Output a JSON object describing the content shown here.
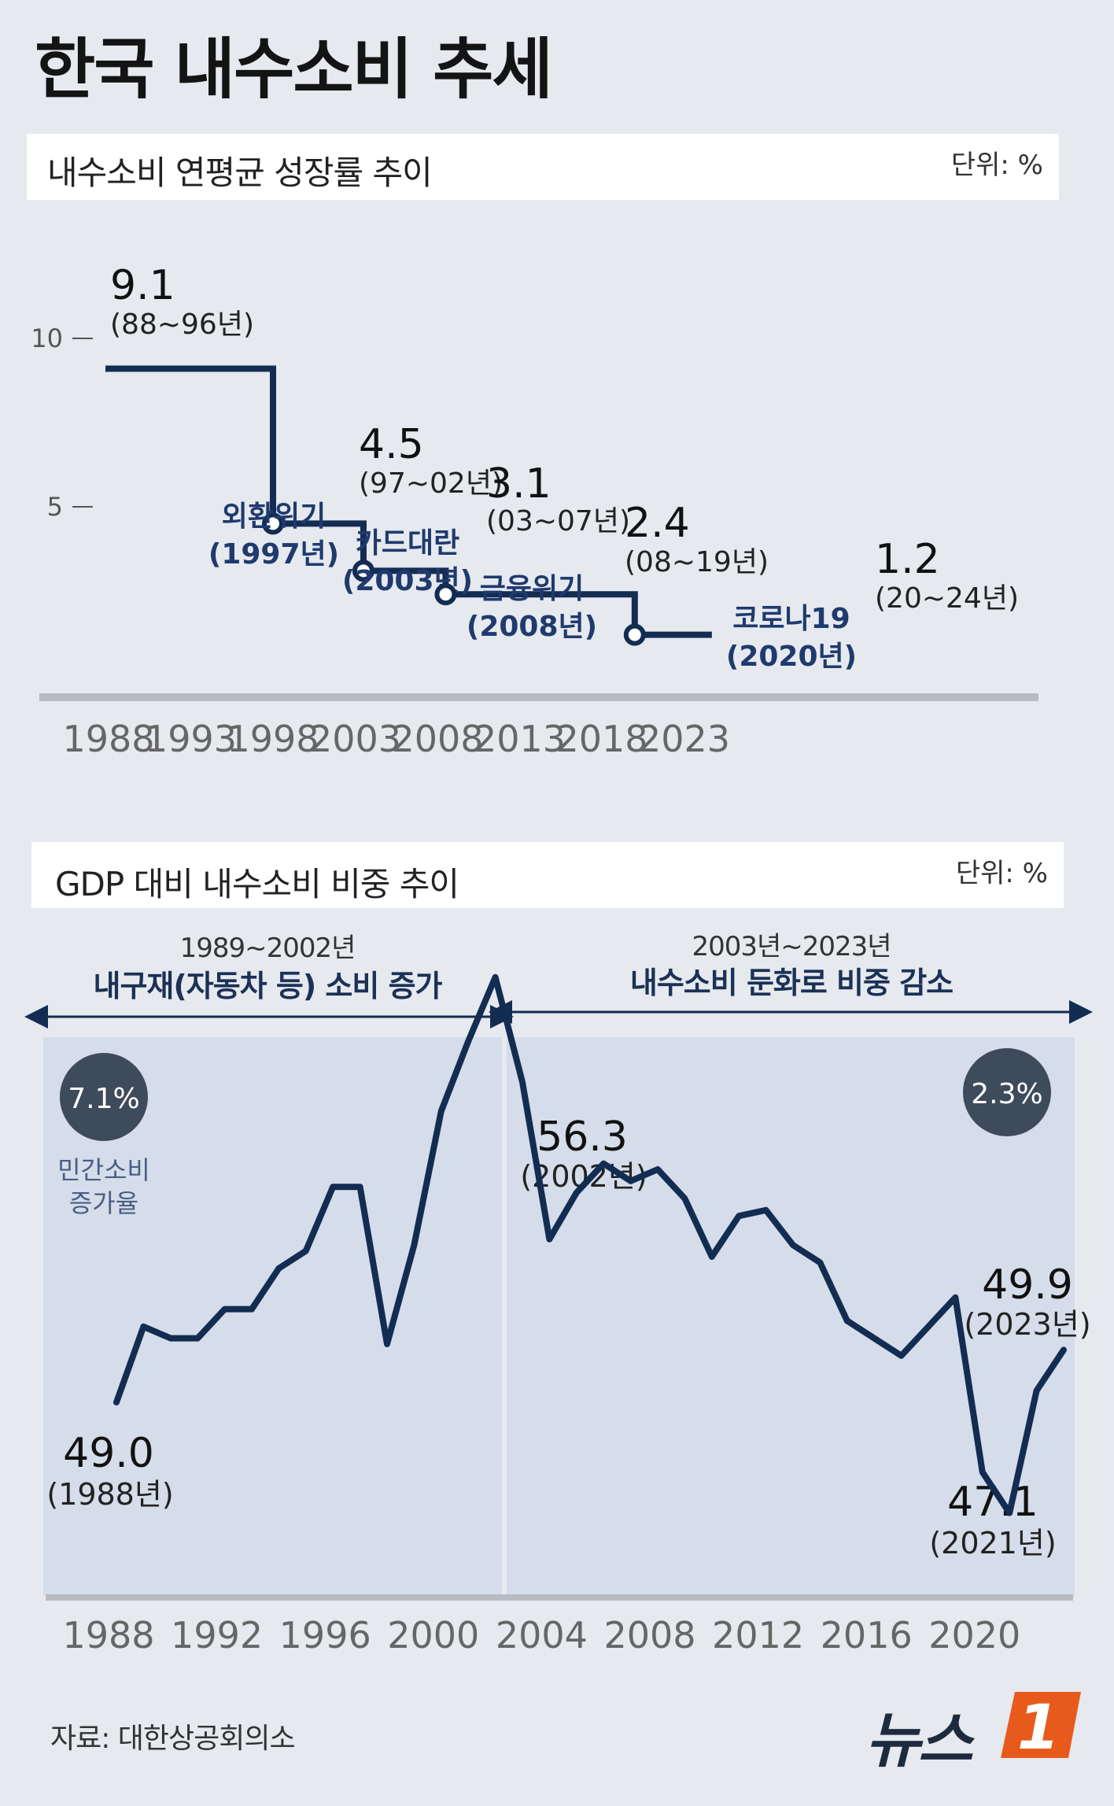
{
  "title": "한국 내수소비 추세",
  "source": "자료: 대한상공회의소",
  "logo": {
    "text": "뉴스",
    "mark": "1",
    "accent": "#e85a1c"
  },
  "colors": {
    "line": "#132c52",
    "bubble": "#3e4b5b",
    "panel": "#d4dde9"
  },
  "chart_data": [
    {
      "type": "line",
      "title": "내수소비 연평균 성장률 추이",
      "unit": "단위: %",
      "step": true,
      "x_ticks": [
        "1988",
        "1993",
        "1998",
        "2003",
        "2008",
        "2013",
        "2018",
        "2023"
      ],
      "y_ticks": [
        {
          "value": 10,
          "label": "10"
        },
        {
          "value": 5,
          "label": "5"
        }
      ],
      "segments": [
        {
          "start": 1988,
          "end": 1998,
          "value": 9.1,
          "label": "9.1",
          "period": "(88~96년)"
        },
        {
          "start": 1998,
          "end": 2003.5,
          "value": 4.5,
          "label": "4.5",
          "period": "(97~02년)"
        },
        {
          "start": 2003.5,
          "end": 2008.5,
          "value": 3.1,
          "label": "3.1",
          "period": "(03~07년)"
        },
        {
          "start": 2008.5,
          "end": 2020,
          "value": 2.4,
          "label": "2.4",
          "period": "(08~19년)"
        },
        {
          "start": 2020,
          "end": 2024.5,
          "value": 1.2,
          "label": "1.2",
          "period": "(20~24년)"
        }
      ],
      "events": [
        {
          "name": "외환위기",
          "year_label": "(1997년)",
          "x": 1998,
          "y": 4.5
        },
        {
          "name": "카드대란",
          "year_label": "(2003년)",
          "x": 2003.5,
          "y": 3.1
        },
        {
          "name": "금융위기",
          "year_label": "(2008년)",
          "x": 2008.5,
          "y": 2.4
        },
        {
          "name": "코로나19",
          "year_label": "(2020년)",
          "x": 2020,
          "y": 1.2
        }
      ]
    },
    {
      "type": "line",
      "title": "GDP 대비 내수소비 비중 추이",
      "unit": "단위: %",
      "x_ticks": [
        "1988",
        "1992",
        "1996",
        "2000",
        "2004",
        "2008",
        "2012",
        "2016",
        "2020"
      ],
      "x": [
        1988,
        1989,
        1990,
        1991,
        1992,
        1993,
        1994,
        1995,
        1996,
        1997,
        1998,
        1999,
        2000,
        2001,
        2002,
        2003,
        2004,
        2005,
        2006,
        2007,
        2008,
        2009,
        2010,
        2011,
        2012,
        2013,
        2014,
        2015,
        2016,
        2017,
        2018,
        2019,
        2020,
        2021,
        2022,
        2023
      ],
      "values": [
        49.0,
        50.3,
        50.1,
        50.1,
        50.6,
        50.6,
        51.3,
        51.6,
        52.7,
        52.7,
        50.0,
        51.7,
        54.0,
        55.2,
        56.3,
        54.5,
        51.8,
        52.6,
        53.1,
        52.8,
        53.0,
        52.5,
        51.5,
        52.2,
        52.3,
        51.7,
        51.4,
        50.4,
        50.1,
        49.8,
        50.3,
        50.8,
        47.8,
        47.1,
        49.2,
        49.9
      ],
      "periods": [
        {
          "range": "1989~2002년",
          "desc": "내구재(자동차 등) 소비 증가",
          "bubble": "7.1%",
          "bubble_caption": [
            "민간소비",
            "증가율"
          ]
        },
        {
          "range": "2003년~2023년",
          "desc": "내수소비 둔화로 비중 감소",
          "bubble": "2.3%"
        }
      ],
      "annotations": [
        {
          "value": "49.0",
          "label": "(1988년)"
        },
        {
          "value": "56.3",
          "label": "(2002년)"
        },
        {
          "value": "47.1",
          "label": "(2021년)"
        },
        {
          "value": "49.9",
          "label": "(2023년)"
        }
      ]
    }
  ]
}
